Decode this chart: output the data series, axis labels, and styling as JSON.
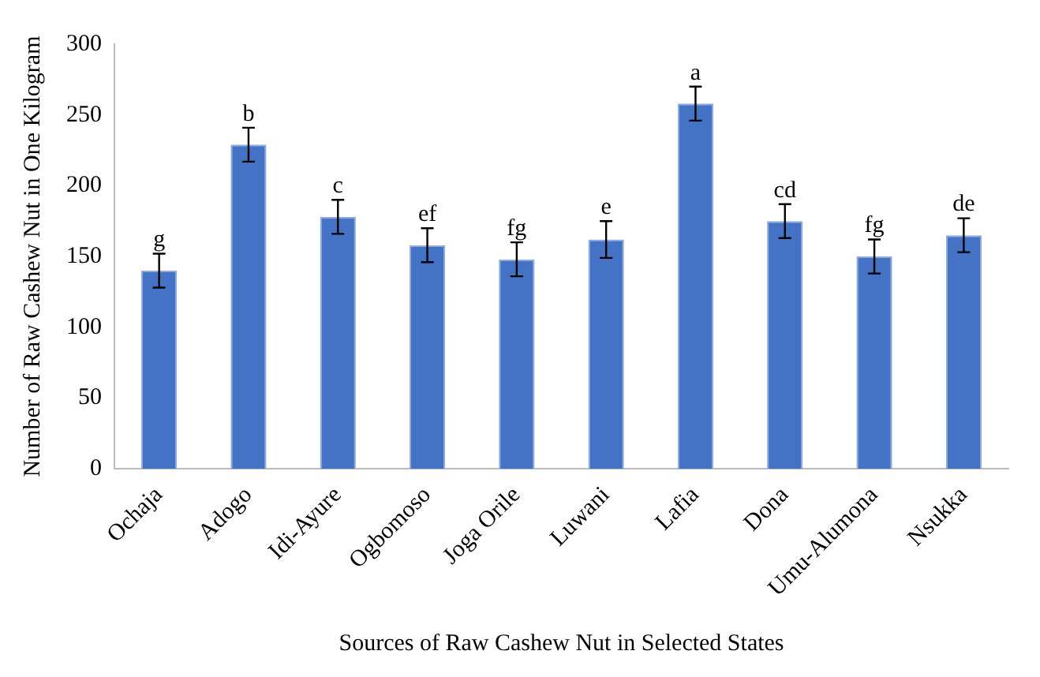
{
  "chart_data": {
    "type": "bar",
    "xlabel": "Sources of Raw Cashew Nut in Selected States",
    "ylabel": "Number of Raw Cashew Nut in One Kilogram",
    "categories": [
      "Ochaja",
      "Adogo",
      "Idi-Ayure",
      "Ogbomoso",
      "Joga Orile",
      "Luwani",
      "Lafia",
      "Dona",
      "Umu-Alumona",
      "Nsukka"
    ],
    "values": [
      140,
      229,
      178,
      158,
      148,
      162,
      258,
      175,
      150,
      165
    ],
    "errors": [
      12,
      12,
      12,
      12,
      12,
      13,
      12,
      12,
      12,
      12
    ],
    "color": "#4472c4",
    "ylim": [
      0,
      300
    ],
    "yticks": [
      0,
      50,
      100,
      150,
      200,
      250,
      300
    ],
    "grid": false,
    "legend": false,
    "annotations": [
      {
        "text": "g",
        "x": "Ochaja",
        "y": 152
      },
      {
        "text": "b",
        "x": "Adogo",
        "y": 241
      },
      {
        "text": "c",
        "x": "Idi-Ayure",
        "y": 190
      },
      {
        "text": "ef",
        "x": "Ogbomoso",
        "y": 170
      },
      {
        "text": "fg",
        "x": "Joga Orile",
        "y": 160
      },
      {
        "text": "e",
        "x": "Luwani",
        "y": 175
      },
      {
        "text": "a",
        "x": "Lafia",
        "y": 270
      },
      {
        "text": "cd",
        "x": "Dona",
        "y": 187
      },
      {
        "text": "fg",
        "x": "Umu-Alumona",
        "y": 162
      },
      {
        "text": "de",
        "x": "Nsukka",
        "y": 177
      }
    ]
  }
}
